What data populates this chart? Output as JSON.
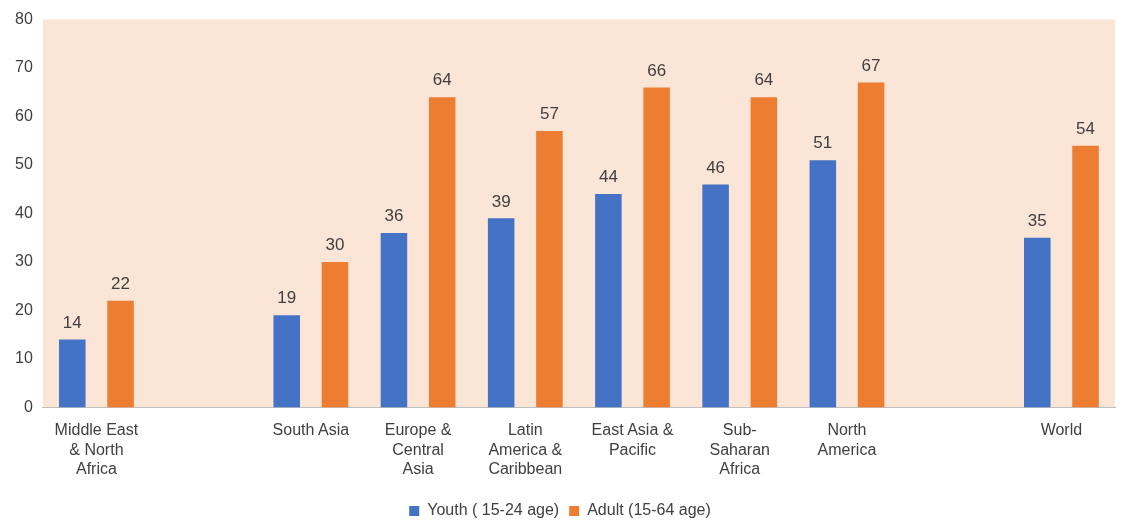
{
  "chart_data": {
    "type": "bar",
    "categories": [
      "Middle East & North Africa",
      null,
      "South Asia",
      "Europe & Central Asia",
      "Latin America & Caribbean",
      "East Asia & Pacific",
      "Sub-Saharan Africa",
      "North America",
      null,
      "World"
    ],
    "series": [
      {
        "name": "Youth ( 15-24 age)",
        "color": "#4472c4",
        "values": [
          14,
          null,
          19,
          36,
          39,
          44,
          46,
          51,
          null,
          35
        ]
      },
      {
        "name": "Adult (15-64 age)",
        "color": "#ed7d31",
        "values": [
          22,
          null,
          30,
          64,
          57,
          66,
          64,
          67,
          null,
          54
        ]
      }
    ],
    "ylim": [
      0,
      80
    ],
    "yticks": [
      0,
      10,
      20,
      30,
      40,
      50,
      60,
      70,
      80
    ],
    "grid": false,
    "legend": "bottom",
    "data_labels": true
  }
}
